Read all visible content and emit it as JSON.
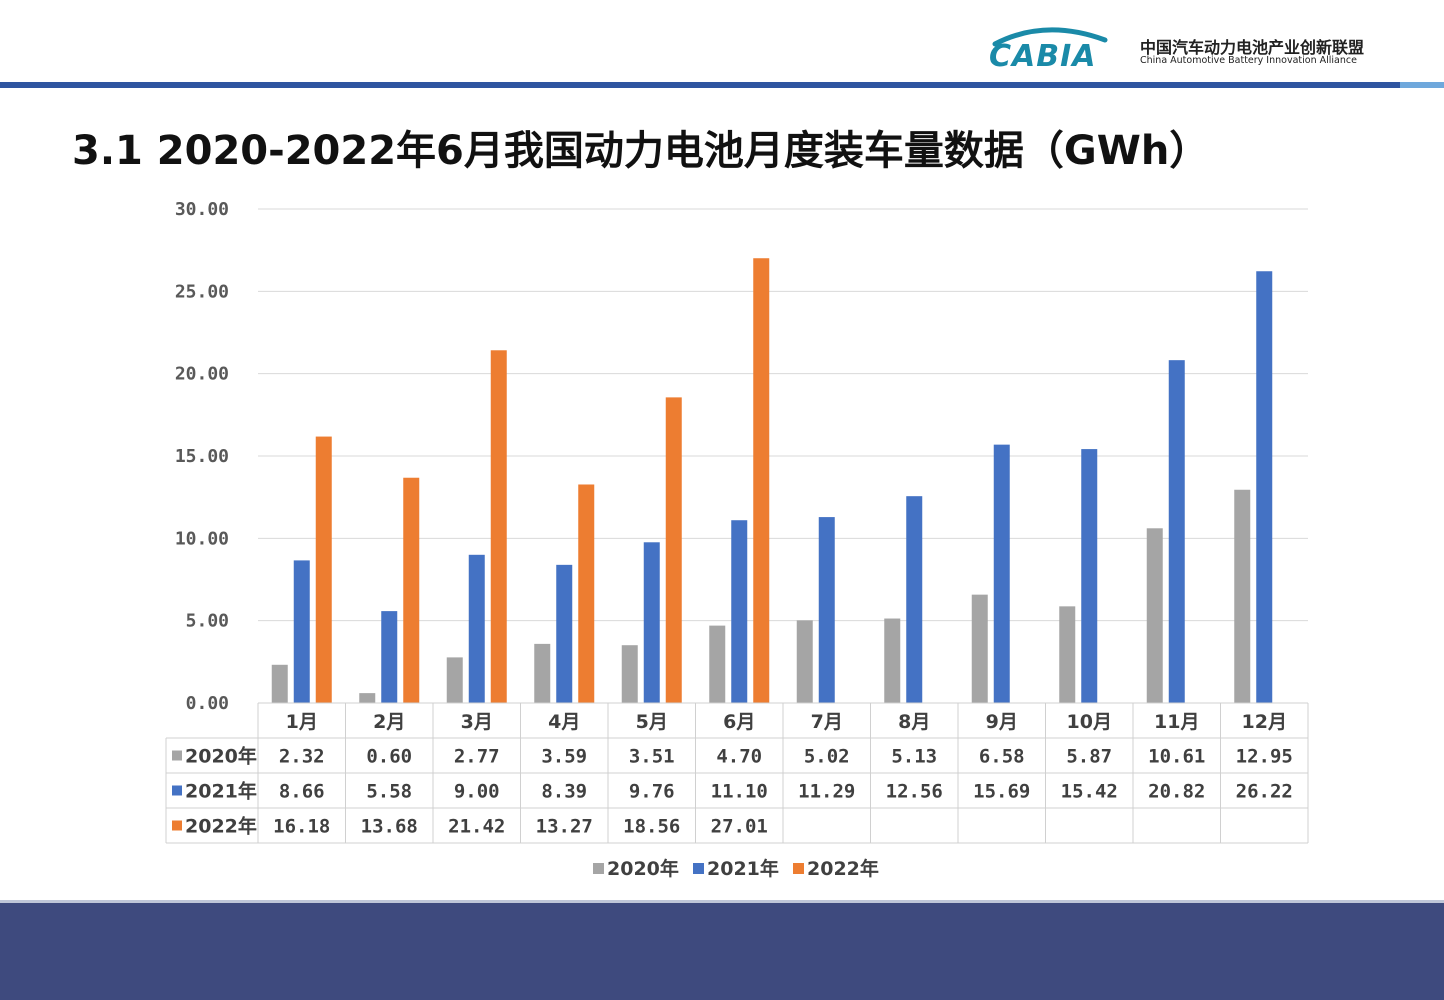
{
  "header": {
    "logo_text": "CABIA",
    "org_name_cn": "中国汽车动力电池产业创新联盟",
    "org_name_en": "China Automotive Battery Innovation Alliance",
    "title": "3.1 2020-2022年6月我国动力电池月度装车量数据（GWh）"
  },
  "colors": {
    "accent": "#2f55a0",
    "footer": "#3e4a7e",
    "series_2020": "#a5a5a5",
    "series_2021": "#4472c4",
    "series_2022": "#ed7d31"
  },
  "chart_data": {
    "type": "bar",
    "title": "",
    "xlabel": "",
    "ylabel": "",
    "ylim": [
      0,
      30
    ],
    "yticks": [
      "0.00",
      "5.00",
      "10.00",
      "15.00",
      "20.00",
      "25.00",
      "30.00"
    ],
    "categories": [
      "1月",
      "2月",
      "3月",
      "4月",
      "5月",
      "6月",
      "7月",
      "8月",
      "9月",
      "10月",
      "11月",
      "12月"
    ],
    "series": [
      {
        "name": "2020年",
        "color": "#a5a5a5",
        "values": [
          2.32,
          0.6,
          2.77,
          3.59,
          3.51,
          4.7,
          5.02,
          5.13,
          6.58,
          5.87,
          10.61,
          12.95
        ],
        "labels": [
          "2.32",
          "0.60",
          "2.77",
          "3.59",
          "3.51",
          "4.70",
          "5.02",
          "5.13",
          "6.58",
          "5.87",
          "10.61",
          "12.95"
        ]
      },
      {
        "name": "2021年",
        "color": "#4472c4",
        "values": [
          8.66,
          5.58,
          9.0,
          8.39,
          9.76,
          11.1,
          11.29,
          12.56,
          15.69,
          15.42,
          20.82,
          26.22
        ],
        "labels": [
          "8.66",
          "5.58",
          "9.00",
          "8.39",
          "9.76",
          "11.10",
          "11.29",
          "12.56",
          "15.69",
          "15.42",
          "20.82",
          "26.22"
        ]
      },
      {
        "name": "2022年",
        "color": "#ed7d31",
        "values": [
          16.18,
          13.68,
          21.42,
          13.27,
          18.56,
          27.01,
          null,
          null,
          null,
          null,
          null,
          null
        ],
        "labels": [
          "16.18",
          "13.68",
          "21.42",
          "13.27",
          "18.56",
          "27.01",
          "",
          "",
          "",
          "",
          "",
          ""
        ]
      }
    ],
    "grid": true,
    "data_table": true,
    "legend": "bottom"
  }
}
